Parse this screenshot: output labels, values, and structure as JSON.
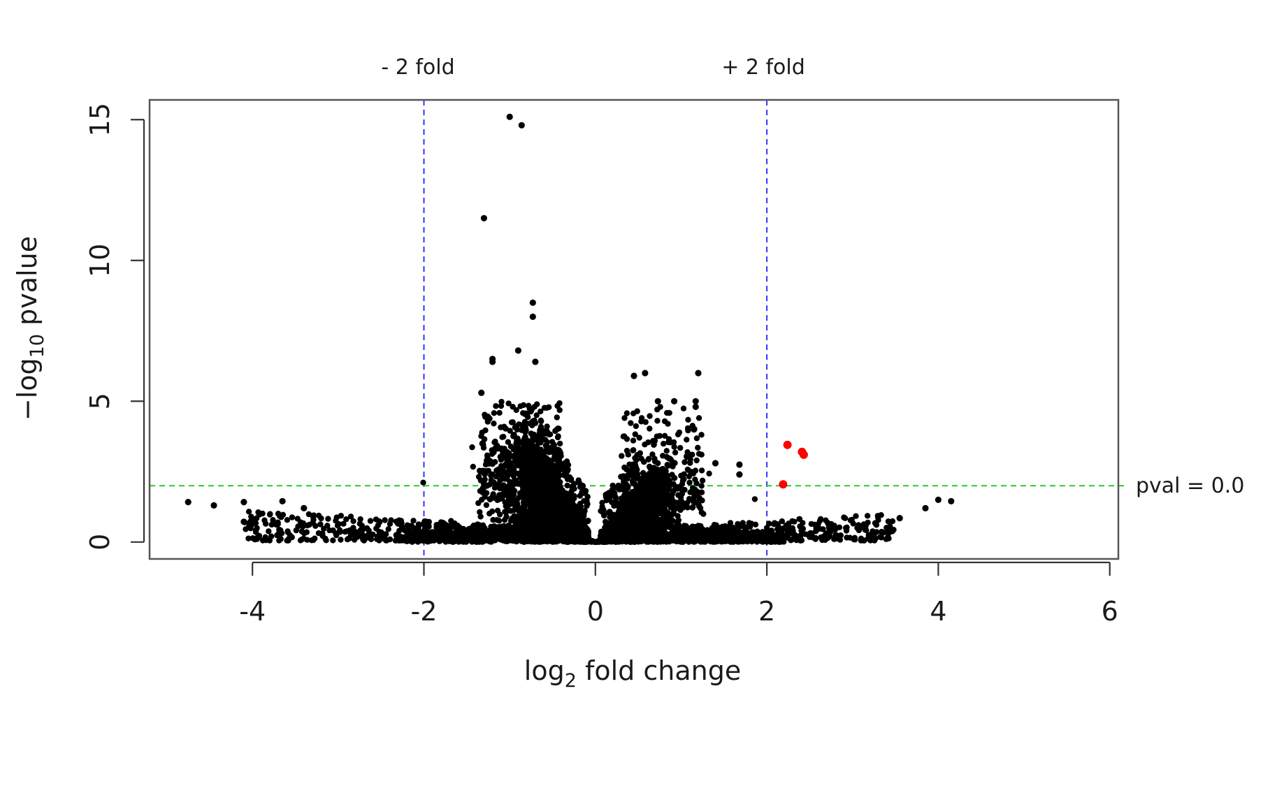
{
  "chart_data": {
    "type": "scatter",
    "title": "",
    "xlabel": {
      "base": "log",
      "sub": "2",
      "rest": " fold change"
    },
    "ylabel": {
      "prefix": "−log",
      "sub": "10",
      "rest": " pvalue"
    },
    "xlim": [
      -5.2,
      6.1
    ],
    "ylim": [
      -0.6,
      15.7
    ],
    "x_ticks": [
      -4,
      -2,
      0,
      2,
      4,
      6
    ],
    "x_tick_labels": [
      "-4",
      "-2",
      "0",
      "2",
      "4",
      "6"
    ],
    "y_ticks": [
      0,
      5,
      10,
      15
    ],
    "y_tick_labels": [
      "0",
      "5",
      "10",
      "15"
    ],
    "grid": false,
    "legend": "none",
    "reference_lines": {
      "vertical": [
        {
          "x": -2,
          "label": "- 2 fold",
          "color": "#3333ff"
        },
        {
          "x": 2,
          "label": "+ 2 fold",
          "color": "#3333ff"
        }
      ],
      "horizontal": [
        {
          "y": 2,
          "label": "pval = 0.0",
          "color": "#22cc22"
        }
      ]
    },
    "colors": {
      "default": "#000000",
      "significant": "#ff0000"
    },
    "highlighted_points": [
      {
        "x": 2.24,
        "y": 3.45
      },
      {
        "x": 2.41,
        "y": 3.2
      },
      {
        "x": 2.43,
        "y": 3.1
      },
      {
        "x": 2.19,
        "y": 2.05
      }
    ],
    "notable_points": [
      {
        "x": -1.0,
        "y": 15.1
      },
      {
        "x": -0.86,
        "y": 14.8
      },
      {
        "x": -1.3,
        "y": 11.5
      },
      {
        "x": -0.73,
        "y": 8.5
      },
      {
        "x": -0.73,
        "y": 8.0
      },
      {
        "x": -0.9,
        "y": 6.8
      },
      {
        "x": -0.7,
        "y": 6.4
      },
      {
        "x": -1.2,
        "y": 6.5
      },
      {
        "x": -1.2,
        "y": 6.4
      },
      {
        "x": -1.33,
        "y": 5.3
      },
      {
        "x": 1.2,
        "y": 6.0
      },
      {
        "x": 0.58,
        "y": 6.0
      },
      {
        "x": 0.45,
        "y": 5.9
      },
      {
        "x": 1.17,
        "y": 5.0
      },
      {
        "x": 1.17,
        "y": 4.8
      },
      {
        "x": 0.92,
        "y": 5.0
      },
      {
        "x": 0.73,
        "y": 5.0
      },
      {
        "x": 1.15,
        "y": 4.0
      },
      {
        "x": 1.68,
        "y": 2.75
      },
      {
        "x": 1.68,
        "y": 2.4
      },
      {
        "x": 1.4,
        "y": 2.8
      },
      {
        "x": -4.75,
        "y": 1.42
      },
      {
        "x": -4.45,
        "y": 1.3
      },
      {
        "x": -4.1,
        "y": 1.42
      },
      {
        "x": -3.65,
        "y": 1.45
      },
      {
        "x": -3.4,
        "y": 1.2
      },
      {
        "x": -4.1,
        "y": 0.72
      },
      {
        "x": 4.0,
        "y": 1.5
      },
      {
        "x": 4.15,
        "y": 1.45
      },
      {
        "x": 3.85,
        "y": 1.2
      },
      {
        "x": 3.55,
        "y": 0.85
      }
    ]
  }
}
